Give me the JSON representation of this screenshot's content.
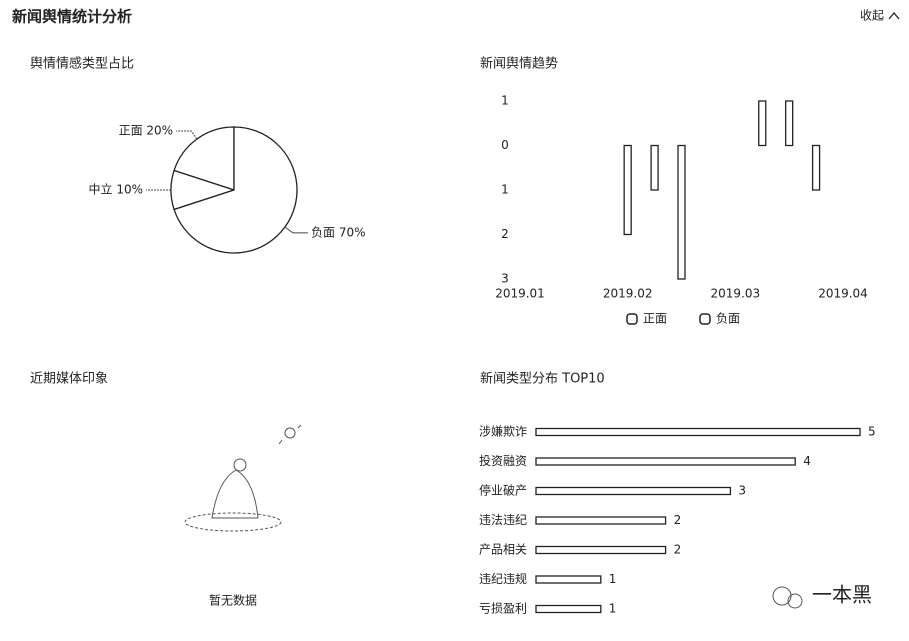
{
  "header": {
    "title": "新闻舆情统计分析",
    "toggle": "收起"
  },
  "media_panel": {
    "title": "近期媒体印象",
    "empty_text": "暂无数据"
  },
  "watermark": "一本黑",
  "chart_data": [
    {
      "type": "pie",
      "title": "舆情情感类型占比",
      "categories": [
        "正面",
        "中立",
        "负面"
      ],
      "values": [
        20,
        10,
        70
      ],
      "value_labels": [
        "正面 20%",
        "中立 10%",
        "负面 70%"
      ],
      "colors": [
        "#ffffff",
        "#ffffff",
        "#ffffff"
      ]
    },
    {
      "type": "bar",
      "title": "新闻舆情趋势",
      "categories": [
        "2019.01",
        null,
        null,
        null,
        "2019.02",
        null,
        null,
        null,
        "2019.03",
        null,
        null,
        null,
        "2019.04"
      ],
      "series": [
        {
          "name": "正面",
          "color": "#ffffff",
          "values": [
            null,
            null,
            null,
            null,
            null,
            null,
            null,
            null,
            null,
            1,
            1,
            null,
            null
          ]
        },
        {
          "name": "负面",
          "color": "#ffffff",
          "values": [
            null,
            null,
            null,
            null,
            -2,
            -1,
            -3,
            null,
            null,
            null,
            null,
            -1,
            null
          ]
        }
      ],
      "ylim": [
        -3,
        1
      ],
      "yticks": [
        1,
        0,
        {
          "value": -1,
          "label": "1"
        },
        {
          "value": -2,
          "label": "2"
        },
        {
          "value": -3,
          "label": "3"
        }
      ],
      "legend": "bottom"
    },
    {
      "type": "hbar",
      "title": "新闻类型分布 TOP10",
      "categories": [
        "涉嫌欺诈",
        "投资融资",
        "停业破产",
        "违法违纪",
        "产品相关",
        "违纪违规",
        "亏损盈利"
      ],
      "values": [
        5,
        4,
        3,
        2,
        2,
        1,
        1
      ],
      "color": "#ffffff",
      "xlim": [
        0,
        5
      ]
    }
  ]
}
